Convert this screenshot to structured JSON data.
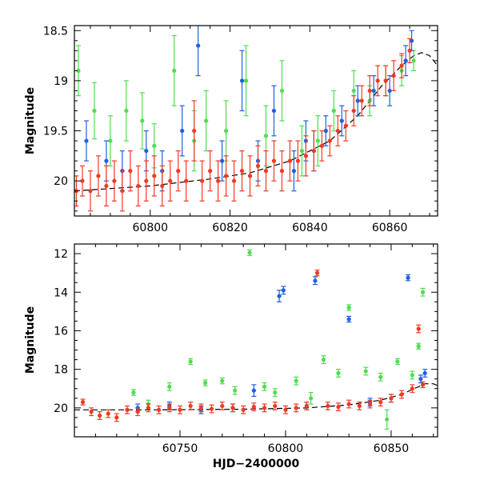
{
  "colors": {
    "green": "#4ddf4d",
    "blue": "#1f5fe0",
    "red": "#f03a22",
    "model": "#000000"
  },
  "chart_data": [
    {
      "type": "scatter",
      "title": "",
      "xlabel": "",
      "ylabel": "Magnitude",
      "xlim": [
        60781,
        60872
      ],
      "ylim": [
        20.35,
        18.45
      ],
      "y_inverted": true,
      "xticks": [
        60800,
        60820,
        60840,
        60860
      ],
      "yticks": [
        18.5,
        19,
        19.5,
        20
      ],
      "ytick_labels": [
        "18.5",
        "19",
        "19.5",
        "20"
      ],
      "series": [
        {
          "color": "green",
          "points": [
            [
              60782,
              18.9,
              0.25
            ],
            [
              60786,
              19.3,
              0.28
            ],
            [
              60790,
              19.6,
              0.25
            ],
            [
              60794,
              19.3,
              0.3
            ],
            [
              60798,
              19.4,
              0.28
            ],
            [
              60801,
              19.65,
              0.22
            ],
            [
              60806,
              18.9,
              0.35
            ],
            [
              60811,
              19.6,
              0.3
            ],
            [
              60814,
              19.4,
              0.3
            ],
            [
              60819,
              19.5,
              0.3
            ],
            [
              60824,
              19.0,
              0.35
            ],
            [
              60829,
              19.55,
              0.3
            ],
            [
              60833,
              19.1,
              0.3
            ],
            [
              60838,
              19.7,
              0.25
            ],
            [
              60842,
              19.6,
              0.25
            ],
            [
              60846,
              19.3,
              0.2
            ],
            [
              60851,
              19.1,
              0.2
            ],
            [
              60855,
              19.2,
              0.15
            ],
            [
              60859,
              19.0,
              0.15
            ],
            [
              60863,
              18.9,
              0.15
            ],
            [
              60866,
              18.8,
              0.1
            ]
          ]
        },
        {
          "color": "blue",
          "points": [
            [
              60784,
              19.6,
              0.2
            ],
            [
              60789,
              19.8,
              0.2
            ],
            [
              60793,
              19.9,
              0.2
            ],
            [
              60799,
              19.7,
              0.2
            ],
            [
              60803,
              19.9,
              0.2
            ],
            [
              60808,
              19.5,
              0.25
            ],
            [
              60812,
              18.65,
              0.3
            ],
            [
              60818,
              19.8,
              0.2
            ],
            [
              60823,
              19.0,
              0.3
            ],
            [
              60827,
              19.8,
              0.2
            ],
            [
              60831,
              19.3,
              0.25
            ],
            [
              60836,
              19.9,
              0.2
            ],
            [
              60839,
              19.6,
              0.2
            ],
            [
              60841,
              19.7,
              0.2
            ],
            [
              60844,
              19.5,
              0.15
            ],
            [
              60848,
              19.4,
              0.15
            ],
            [
              60852,
              19.2,
              0.15
            ],
            [
              60856,
              19.1,
              0.15
            ],
            [
              60860,
              19.1,
              0.15
            ],
            [
              60864,
              18.8,
              0.15
            ],
            [
              60865.5,
              18.6,
              0.1
            ]
          ]
        },
        {
          "color": "red",
          "points": [
            [
              60781.5,
              20.1,
              0.15
            ],
            [
              60783,
              20.0,
              0.15
            ],
            [
              60785,
              20.1,
              0.2
            ],
            [
              60787,
              19.95,
              0.2
            ],
            [
              60789,
              20.05,
              0.2
            ],
            [
              60791,
              20.0,
              0.2
            ],
            [
              60793,
              20.1,
              0.2
            ],
            [
              60795,
              19.9,
              0.2
            ],
            [
              60797,
              20.05,
              0.2
            ],
            [
              60799,
              20.0,
              0.2
            ],
            [
              60801,
              19.95,
              0.2
            ],
            [
              60803,
              20.05,
              0.2
            ],
            [
              60805,
              20.0,
              0.2
            ],
            [
              60807,
              19.9,
              0.2
            ],
            [
              60809,
              20.0,
              0.2
            ],
            [
              60811,
              19.5,
              0.3
            ],
            [
              60813,
              20.0,
              0.2
            ],
            [
              60815,
              19.9,
              0.2
            ],
            [
              60817,
              20.0,
              0.2
            ],
            [
              60819,
              19.95,
              0.2
            ],
            [
              60821,
              20.0,
              0.2
            ],
            [
              60823,
              19.9,
              0.2
            ],
            [
              60825,
              19.95,
              0.2
            ],
            [
              60827,
              19.85,
              0.2
            ],
            [
              60829,
              19.9,
              0.2
            ],
            [
              60831,
              19.8,
              0.2
            ],
            [
              60833,
              19.9,
              0.2
            ],
            [
              60835,
              19.8,
              0.2
            ],
            [
              60837,
              19.8,
              0.2
            ],
            [
              60839,
              19.75,
              0.2
            ],
            [
              60841,
              19.7,
              0.2
            ],
            [
              60843,
              19.65,
              0.15
            ],
            [
              60845,
              19.6,
              0.15
            ],
            [
              60847,
              19.5,
              0.15
            ],
            [
              60849,
              19.45,
              0.15
            ],
            [
              60851,
              19.3,
              0.15
            ],
            [
              60853,
              19.2,
              0.15
            ],
            [
              60855,
              19.1,
              0.15
            ],
            [
              60857,
              19.0,
              0.15
            ],
            [
              60859,
              19.0,
              0.15
            ],
            [
              60861,
              18.95,
              0.15
            ],
            [
              60863,
              18.85,
              0.12
            ],
            [
              60865,
              18.7,
              0.12
            ]
          ]
        }
      ],
      "model_curve": [
        [
          60781,
          20.1
        ],
        [
          60800,
          20.05
        ],
        [
          60815,
          19.98
        ],
        [
          60825,
          19.92
        ],
        [
          60835,
          19.8
        ],
        [
          60845,
          19.6
        ],
        [
          60852,
          19.35
        ],
        [
          60858,
          19.05
        ],
        [
          60863,
          18.85
        ],
        [
          60866,
          18.75
        ],
        [
          60868,
          18.72
        ],
        [
          60870,
          18.75
        ],
        [
          60872,
          18.85
        ]
      ]
    },
    {
      "type": "scatter",
      "title": "",
      "xlabel": "HJD−2400000",
      "ylabel": "Magnitude",
      "xlim": [
        60700,
        60872
      ],
      "ylim": [
        21.5,
        11.5
      ],
      "y_inverted": true,
      "xticks": [
        60750,
        60800,
        60850
      ],
      "yticks": [
        12,
        14,
        16,
        18,
        20
      ],
      "ytick_labels": [
        "12",
        "14",
        "16",
        "18",
        "20"
      ],
      "series": [
        {
          "color": "green",
          "points": [
            [
              60728,
              19.2,
              0.15
            ],
            [
              60735,
              19.8,
              0.2
            ],
            [
              60745,
              18.9,
              0.2
            ],
            [
              60755,
              17.6,
              0.15
            ],
            [
              60762,
              18.7,
              0.15
            ],
            [
              60770,
              18.6,
              0.15
            ],
            [
              60776,
              19.1,
              0.2
            ],
            [
              60783,
              11.95,
              0.15
            ],
            [
              60790,
              18.9,
              0.2
            ],
            [
              60795,
              19.2,
              0.2
            ],
            [
              60805,
              18.6,
              0.2
            ],
            [
              60812,
              19.5,
              0.3
            ],
            [
              60818,
              17.5,
              0.2
            ],
            [
              60825,
              18.2,
              0.2
            ],
            [
              60830,
              14.8,
              0.15
            ],
            [
              60838,
              18.1,
              0.2
            ],
            [
              60845,
              18.4,
              0.2
            ],
            [
              60848,
              20.6,
              0.5
            ],
            [
              60853,
              17.6,
              0.15
            ],
            [
              60860,
              18.3,
              0.2
            ],
            [
              60863,
              16.8,
              0.15
            ],
            [
              60865,
              14.0,
              0.2
            ]
          ]
        },
        {
          "color": "blue",
          "points": [
            [
              60730,
              20.0,
              0.2
            ],
            [
              60745,
              19.9,
              0.2
            ],
            [
              60760,
              20.1,
              0.2
            ],
            [
              60775,
              20.0,
              0.2
            ],
            [
              60785,
              19.1,
              0.3
            ],
            [
              60797,
              14.2,
              0.3
            ],
            [
              60799,
              13.9,
              0.2
            ],
            [
              60810,
              19.9,
              0.2
            ],
            [
              60814,
              13.4,
              0.2
            ],
            [
              60830,
              15.4,
              0.15
            ],
            [
              60840,
              19.7,
              0.2
            ],
            [
              60850,
              19.5,
              0.2
            ],
            [
              60858,
              13.25,
              0.15
            ],
            [
              60864,
              18.5,
              0.2
            ],
            [
              60866,
              18.2,
              0.2
            ]
          ]
        },
        {
          "color": "red",
          "points": [
            [
              60704,
              19.7,
              0.15
            ],
            [
              60708,
              20.2,
              0.2
            ],
            [
              60712,
              20.4,
              0.2
            ],
            [
              60716,
              20.3,
              0.2
            ],
            [
              60720,
              20.5,
              0.2
            ],
            [
              60725,
              20.1,
              0.2
            ],
            [
              60730,
              20.2,
              0.2
            ],
            [
              60735,
              20.0,
              0.2
            ],
            [
              60740,
              20.1,
              0.2
            ],
            [
              60745,
              20.0,
              0.2
            ],
            [
              60750,
              20.1,
              0.2
            ],
            [
              60755,
              19.9,
              0.2
            ],
            [
              60760,
              20.0,
              0.2
            ],
            [
              60765,
              20.05,
              0.2
            ],
            [
              60770,
              19.9,
              0.2
            ],
            [
              60775,
              20.0,
              0.2
            ],
            [
              60780,
              20.1,
              0.2
            ],
            [
              60785,
              19.95,
              0.2
            ],
            [
              60790,
              20.0,
              0.2
            ],
            [
              60795,
              19.9,
              0.2
            ],
            [
              60800,
              20.1,
              0.2
            ],
            [
              60805,
              20.0,
              0.2
            ],
            [
              60810,
              19.9,
              0.2
            ],
            [
              60815,
              13.0,
              0.15
            ],
            [
              60820,
              19.9,
              0.2
            ],
            [
              60825,
              19.95,
              0.2
            ],
            [
              60830,
              19.8,
              0.2
            ],
            [
              60835,
              19.9,
              0.2
            ],
            [
              60840,
              19.8,
              0.2
            ],
            [
              60845,
              19.7,
              0.2
            ],
            [
              60850,
              19.5,
              0.2
            ],
            [
              60855,
              19.3,
              0.2
            ],
            [
              60860,
              19.0,
              0.2
            ],
            [
              60863,
              15.9,
              0.2
            ],
            [
              60865,
              18.8,
              0.15
            ]
          ]
        }
      ],
      "model_curve": [
        [
          60700,
          20.1
        ],
        [
          60740,
          20.1
        ],
        [
          60780,
          20.07
        ],
        [
          60810,
          20.0
        ],
        [
          60830,
          19.85
        ],
        [
          60845,
          19.6
        ],
        [
          60855,
          19.3
        ],
        [
          60862,
          18.95
        ],
        [
          60866,
          18.75
        ],
        [
          60870,
          18.75
        ],
        [
          60872,
          18.85
        ]
      ]
    }
  ]
}
